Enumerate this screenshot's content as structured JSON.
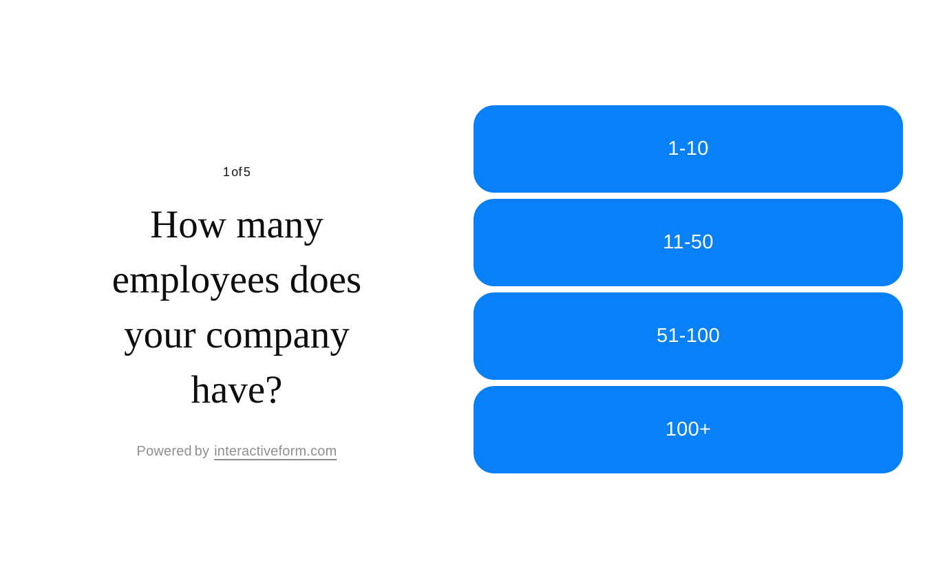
{
  "form": {
    "step_indicator": "1 of 5",
    "question": "How many employees does your company have?",
    "options": [
      "1-10",
      "11-50",
      "51-100",
      "100+"
    ],
    "footer": {
      "prefix": "Powered by",
      "link": "interactiveform.com"
    },
    "colors": {
      "option_background": "#0880F8",
      "option_text": "#ffffff",
      "question_text": "#0d0d0d",
      "muted_text": "#8f8f8f",
      "page_background": "#ffffff"
    }
  }
}
